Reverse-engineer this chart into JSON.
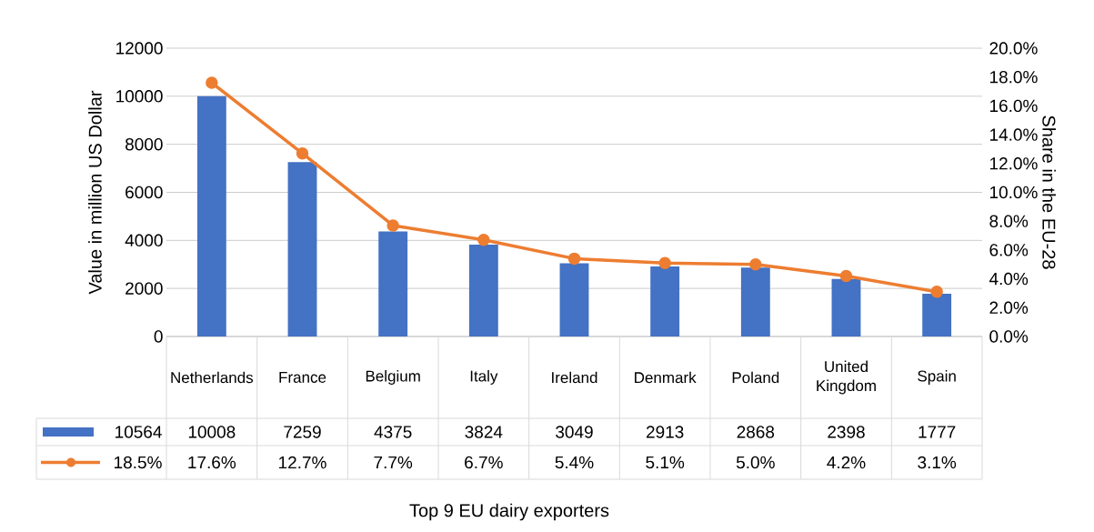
{
  "chart_data": {
    "type": "bar",
    "annotations": [
      "Top 9 EU dairy exporters"
    ],
    "ylabel": "Value in million US Dollar",
    "y2label": "Share in the EU-28",
    "categories": [
      "Netherlands",
      "France",
      "Belgium",
      "Italy",
      "Ireland",
      "Denmark",
      "Poland",
      "United Kingdom",
      "Spain"
    ],
    "series": [
      {
        "name": "10564",
        "color": "#4472c4",
        "values": [
          10008,
          7259,
          4375,
          3824,
          3049,
          2913,
          2868,
          2398,
          1777
        ],
        "value_labels": [
          "10008",
          "7259",
          "4375",
          "3824",
          "3049",
          "2913",
          "2868",
          "2398",
          "1777"
        ]
      },
      {
        "name": "18.5%",
        "type": "line",
        "axis": "y2",
        "color": "#ed7d31",
        "marker": "circle",
        "values": [
          17.6,
          12.7,
          7.7,
          6.7,
          5.4,
          5.1,
          5.0,
          4.2,
          3.1
        ],
        "value_labels": [
          "17.6%",
          "12.7%",
          "7.7%",
          "6.7%",
          "5.4%",
          "5.1%",
          "5.0%",
          "4.2%",
          "3.1%"
        ]
      }
    ],
    "ylim": [
      0,
      12000
    ],
    "yticks": [
      0,
      2000,
      4000,
      6000,
      8000,
      10000,
      12000
    ],
    "y2lim": [
      0,
      20
    ],
    "y2ticks": [
      {
        "value": 0,
        "label": "0.0%"
      },
      {
        "value": 2,
        "label": "2.0%"
      },
      {
        "value": 4,
        "label": "4.0%"
      },
      {
        "value": 6,
        "label": "6.0%"
      },
      {
        "value": 8,
        "label": "8.0%"
      },
      {
        "value": 10,
        "label": "10.0%"
      },
      {
        "value": 12,
        "label": "12.0%"
      },
      {
        "value": 14,
        "label": "14.0%"
      },
      {
        "value": 16,
        "label": "16.0%"
      },
      {
        "value": 18,
        "label": "18.0%"
      },
      {
        "value": 20,
        "label": "20.0%"
      }
    ],
    "grid": "y",
    "legend": "bottom left"
  }
}
